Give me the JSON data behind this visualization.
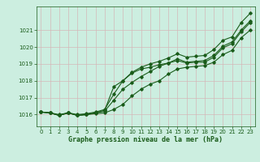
{
  "title": "",
  "xlabel": "Graphe pression niveau de la mer (hPa)",
  "ylabel": "",
  "background_color": "#cceee0",
  "grid_color": "#c8c8d8",
  "line_color": "#1a5c1a",
  "text_color": "#1a5c1a",
  "ylim": [
    1015.3,
    1022.4
  ],
  "xlim": [
    -0.5,
    23.5
  ],
  "yticks": [
    1016,
    1017,
    1018,
    1019,
    1020,
    1021
  ],
  "xticks": [
    0,
    1,
    2,
    3,
    4,
    5,
    6,
    7,
    8,
    9,
    10,
    11,
    12,
    13,
    14,
    15,
    16,
    17,
    18,
    19,
    20,
    21,
    22,
    23
  ],
  "series1": [
    1016.15,
    1016.1,
    1015.95,
    1016.1,
    1015.95,
    1016.0,
    1016.05,
    1016.1,
    1016.3,
    1016.6,
    1017.1,
    1017.5,
    1017.8,
    1018.0,
    1018.4,
    1018.7,
    1018.8,
    1018.85,
    1018.9,
    1019.1,
    1019.55,
    1019.8,
    1020.55,
    1021.0
  ],
  "series2": [
    1016.15,
    1016.1,
    1015.95,
    1016.1,
    1015.95,
    1016.0,
    1016.1,
    1016.2,
    1016.85,
    1017.5,
    1017.9,
    1018.25,
    1018.55,
    1018.85,
    1019.05,
    1019.2,
    1019.05,
    1019.1,
    1019.1,
    1019.4,
    1019.95,
    1020.2,
    1020.9,
    1021.45
  ],
  "series3": [
    1016.15,
    1016.1,
    1015.95,
    1016.1,
    1015.95,
    1016.0,
    1016.1,
    1016.25,
    1017.65,
    1018.0,
    1018.45,
    1018.7,
    1018.8,
    1018.95,
    1019.05,
    1019.3,
    1019.1,
    1019.15,
    1019.2,
    1019.5,
    1020.05,
    1020.3,
    1021.0,
    1021.55
  ],
  "series4": [
    1016.15,
    1016.1,
    1016.0,
    1016.1,
    1016.0,
    1016.05,
    1016.15,
    1016.3,
    1017.2,
    1018.0,
    1018.5,
    1018.8,
    1019.0,
    1019.15,
    1019.35,
    1019.6,
    1019.4,
    1019.45,
    1019.5,
    1019.85,
    1020.4,
    1020.6,
    1021.45,
    1022.0
  ]
}
